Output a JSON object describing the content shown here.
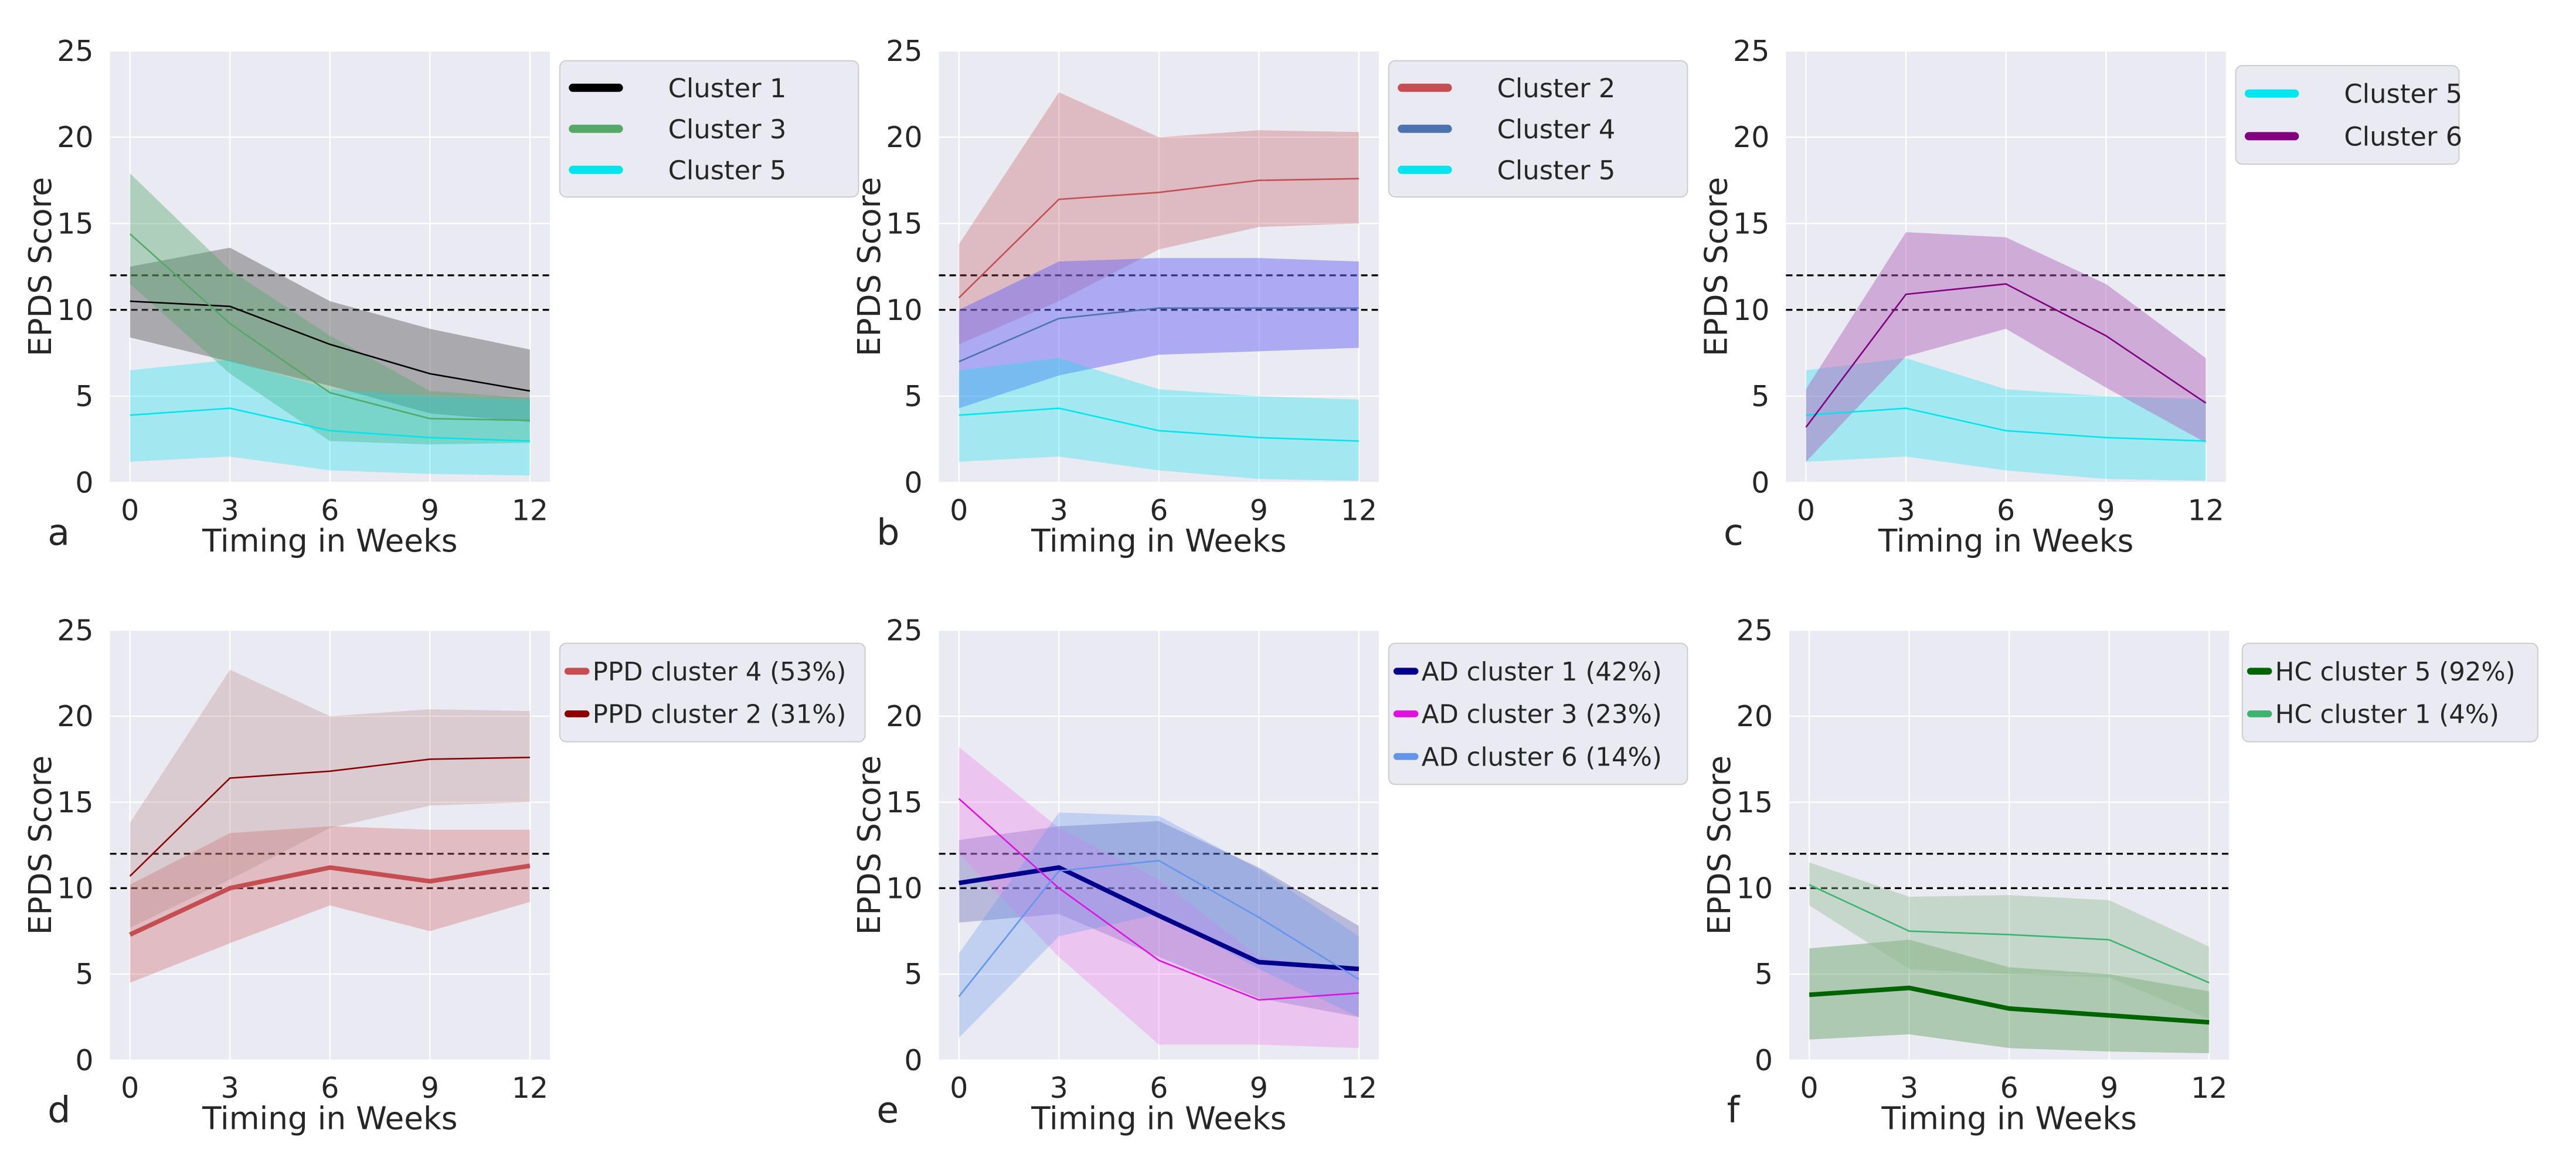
{
  "figure": {
    "ref_lines": [
      10,
      12
    ],
    "colors": {
      "plot_bg": "#eaeaf2",
      "grid": "#ffffff",
      "text": "#262626",
      "ref_line": "#000000",
      "legend_bg": "#eaeaf2",
      "legend_border": "#cccccc"
    }
  },
  "chart_data": [
    {
      "panel_label": "a",
      "type": "line",
      "xlabel": "Timing in Weeks",
      "ylabel": "EPDS Score",
      "x": [
        0,
        3,
        6,
        9,
        12
      ],
      "xticks": [
        "0",
        "3",
        "6",
        "9",
        "12"
      ],
      "yticks": [
        "0",
        "5",
        "10",
        "15",
        "20",
        "25"
      ],
      "xlim": [
        -0.6,
        12.6
      ],
      "ylim": [
        0,
        25
      ],
      "legend_placement": "outside-top-right",
      "series": [
        {
          "name": "Cluster 1",
          "color": "#000000",
          "band_color": "#5a5a5a",
          "band_opacity": 0.45,
          "line_width": 1,
          "values": [
            10.5,
            10.2,
            8.0,
            6.3,
            5.3
          ],
          "lower": [
            8.4,
            7.0,
            5.6,
            4.0,
            3.5
          ],
          "upper": [
            12.5,
            13.6,
            10.5,
            8.9,
            7.7
          ]
        },
        {
          "name": "Cluster 3",
          "color": "#55a868",
          "band_color": "#55a868",
          "band_opacity": 0.4,
          "line_width": 1,
          "values": [
            14.4,
            9.2,
            5.2,
            3.7,
            3.6
          ],
          "lower": [
            11.5,
            6.3,
            2.4,
            2.2,
            2.3
          ],
          "upper": [
            17.9,
            12.3,
            8.5,
            5.3,
            4.9
          ]
        },
        {
          "name": "Cluster 5",
          "color": "#00e5ee",
          "band_color": "#00e5ee",
          "band_opacity": 0.3,
          "line_width": 1,
          "values": [
            3.9,
            4.3,
            3.0,
            2.6,
            2.4
          ],
          "lower": [
            1.2,
            1.5,
            0.7,
            0.5,
            0.4
          ],
          "upper": [
            6.5,
            7.1,
            5.4,
            5.0,
            4.8
          ]
        }
      ]
    },
    {
      "panel_label": "b",
      "type": "line",
      "xlabel": "Timing in Weeks",
      "ylabel": "EPDS Score",
      "x": [
        0,
        3,
        6,
        9,
        12
      ],
      "xticks": [
        "0",
        "3",
        "6",
        "9",
        "12"
      ],
      "yticks": [
        "0",
        "5",
        "10",
        "15",
        "20",
        "25"
      ],
      "xlim": [
        -0.6,
        12.6
      ],
      "ylim": [
        0,
        25
      ],
      "legend_placement": "outside-top-right",
      "series": [
        {
          "name": "Cluster 2",
          "color": "#c44e52",
          "band_color": "#c44e52",
          "band_opacity": 0.3,
          "line_width": 1,
          "values": [
            10.7,
            16.4,
            16.8,
            17.5,
            17.6
          ],
          "lower": [
            8.0,
            10.5,
            13.5,
            14.8,
            15.0
          ],
          "upper": [
            13.8,
            22.6,
            20.0,
            20.4,
            20.3
          ]
        },
        {
          "name": "Cluster 4",
          "color": "#4c72b0",
          "band_color": "#6e6af2",
          "band_opacity": 0.5,
          "line_width": 1,
          "values": [
            7.0,
            9.5,
            10.1,
            10.1,
            10.1
          ],
          "lower": [
            4.3,
            6.2,
            7.4,
            7.6,
            7.8
          ],
          "upper": [
            10.0,
            12.8,
            13.0,
            13.0,
            12.8
          ]
        },
        {
          "name": "Cluster 5",
          "color": "#00e5ee",
          "band_color": "#00e5ee",
          "band_opacity": 0.3,
          "line_width": 1,
          "values": [
            3.9,
            4.3,
            3.0,
            2.6,
            2.4
          ],
          "lower": [
            1.2,
            1.5,
            0.7,
            0.2,
            0.1
          ],
          "upper": [
            6.5,
            7.2,
            5.4,
            5.0,
            4.8
          ]
        }
      ]
    },
    {
      "panel_label": "c",
      "type": "line",
      "xlabel": "Timing in Weeks",
      "ylabel": "EPDS Score",
      "x": [
        0,
        3,
        6,
        9,
        12
      ],
      "xticks": [
        "0",
        "3",
        "6",
        "9",
        "12"
      ],
      "yticks": [
        "0",
        "5",
        "10",
        "15",
        "20",
        "25"
      ],
      "xlim": [
        -0.6,
        12.6
      ],
      "ylim": [
        0,
        25
      ],
      "legend_placement": "outside-top-right",
      "series": [
        {
          "name": "Cluster 5",
          "color": "#00e5ee",
          "band_color": "#00e5ee",
          "band_opacity": 0.3,
          "line_width": 1,
          "values": [
            3.9,
            4.3,
            3.0,
            2.6,
            2.4
          ],
          "lower": [
            1.2,
            1.5,
            0.7,
            0.2,
            0.1
          ],
          "upper": [
            6.5,
            7.2,
            5.4,
            5.0,
            4.8
          ]
        },
        {
          "name": "Cluster 6",
          "color": "#800080",
          "band_color": "#b05fb8",
          "band_opacity": 0.45,
          "line_width": 1,
          "values": [
            3.2,
            10.9,
            11.5,
            8.5,
            4.6
          ],
          "lower": [
            1.2,
            7.3,
            8.9,
            5.5,
            2.3
          ],
          "upper": [
            5.4,
            14.5,
            14.2,
            11.5,
            7.2
          ]
        }
      ]
    },
    {
      "panel_label": "d",
      "type": "line",
      "xlabel": "Timing in Weeks",
      "ylabel": "EPDS Score",
      "x": [
        0,
        3,
        6,
        9,
        12
      ],
      "xticks": [
        "0",
        "3",
        "6",
        "9",
        "12"
      ],
      "yticks": [
        "0",
        "5",
        "10",
        "15",
        "20",
        "25"
      ],
      "xlim": [
        -0.6,
        12.6
      ],
      "ylim": [
        0,
        25
      ],
      "legend_placement": "outside-top-right",
      "series": [
        {
          "name": "PPD cluster 4 (53%)",
          "color": "#c44e52",
          "band_color": "#d06a6e",
          "band_opacity": 0.35,
          "line_width": 3,
          "values": [
            7.3,
            10.0,
            11.2,
            10.4,
            11.3
          ],
          "lower": [
            4.5,
            6.8,
            9.0,
            7.5,
            9.2
          ],
          "upper": [
            10.2,
            13.2,
            13.6,
            13.4,
            13.4
          ]
        },
        {
          "name": "PPD cluster 2 (31%)",
          "color": "#8b0000",
          "band_color": "#b07a7a",
          "band_opacity": 0.28,
          "line_width": 1,
          "values": [
            10.7,
            16.4,
            16.8,
            17.5,
            17.6
          ],
          "lower": [
            7.7,
            10.5,
            13.5,
            14.8,
            15.0
          ],
          "upper": [
            13.8,
            22.7,
            20.0,
            20.4,
            20.3
          ]
        }
      ]
    },
    {
      "panel_label": "e",
      "type": "line",
      "xlabel": "Timing in Weeks",
      "ylabel": "EPDS Score",
      "x": [
        0,
        3,
        6,
        9,
        12
      ],
      "xticks": [
        "0",
        "3",
        "6",
        "9",
        "12"
      ],
      "yticks": [
        "0",
        "5",
        "10",
        "15",
        "20",
        "25"
      ],
      "xlim": [
        -0.6,
        12.6
      ],
      "ylim": [
        0,
        25
      ],
      "legend_placement": "outside-top-right",
      "series": [
        {
          "name": "AD cluster 1 (42%)",
          "color": "#00008b",
          "band_color": "#4a4aa8",
          "band_opacity": 0.3,
          "line_width": 3,
          "values": [
            10.3,
            11.2,
            8.4,
            5.7,
            5.3
          ],
          "lower": [
            8.0,
            8.5,
            6.0,
            3.6,
            2.5
          ],
          "upper": [
            12.8,
            13.6,
            13.9,
            11.2,
            7.8
          ]
        },
        {
          "name": "AD cluster 3 (23%)",
          "color": "#e010e0",
          "band_color": "#ee82ee",
          "band_opacity": 0.35,
          "line_width": 1,
          "values": [
            15.2,
            10.0,
            5.8,
            3.5,
            3.9
          ],
          "lower": [
            12.0,
            6.0,
            0.9,
            0.9,
            0.7
          ],
          "upper": [
            18.2,
            13.5,
            10.5,
            6.0,
            5.1
          ]
        },
        {
          "name": "AD cluster 6 (14%)",
          "color": "#6495ed",
          "band_color": "#6495ed",
          "band_opacity": 0.3,
          "line_width": 1,
          "values": [
            3.7,
            11.0,
            11.6,
            8.3,
            4.7
          ],
          "lower": [
            1.3,
            7.2,
            8.5,
            5.3,
            2.5
          ],
          "upper": [
            6.2,
            14.4,
            14.2,
            11.1,
            7.2
          ]
        }
      ]
    },
    {
      "panel_label": "f",
      "type": "line",
      "xlabel": "Timing in Weeks",
      "ylabel": "EPDS Score",
      "x": [
        0,
        3,
        6,
        9,
        12
      ],
      "xticks": [
        "0",
        "3",
        "6",
        "9",
        "12"
      ],
      "yticks": [
        "0",
        "5",
        "10",
        "15",
        "20",
        "25"
      ],
      "xlim": [
        -0.6,
        12.6
      ],
      "ylim": [
        0,
        25
      ],
      "legend_placement": "outside-top-right",
      "series": [
        {
          "name": "HC cluster 5 (92%)",
          "color": "#006400",
          "band_color": "#3d8b3d",
          "band_opacity": 0.35,
          "line_width": 3,
          "values": [
            3.8,
            4.2,
            3.0,
            2.6,
            2.2
          ],
          "lower": [
            1.2,
            1.5,
            0.7,
            0.5,
            0.4
          ],
          "upper": [
            6.5,
            7.0,
            5.4,
            5.0,
            4.0
          ]
        },
        {
          "name": "HC cluster 1 (4%)",
          "color": "#3cb371",
          "band_color": "#8fbc8f",
          "band_opacity": 0.4,
          "line_width": 1,
          "values": [
            10.2,
            7.5,
            7.3,
            7.0,
            4.5
          ],
          "lower": [
            9.0,
            5.3,
            5.0,
            4.8,
            2.4
          ],
          "upper": [
            11.5,
            9.5,
            9.6,
            9.3,
            6.6
          ]
        }
      ]
    }
  ]
}
